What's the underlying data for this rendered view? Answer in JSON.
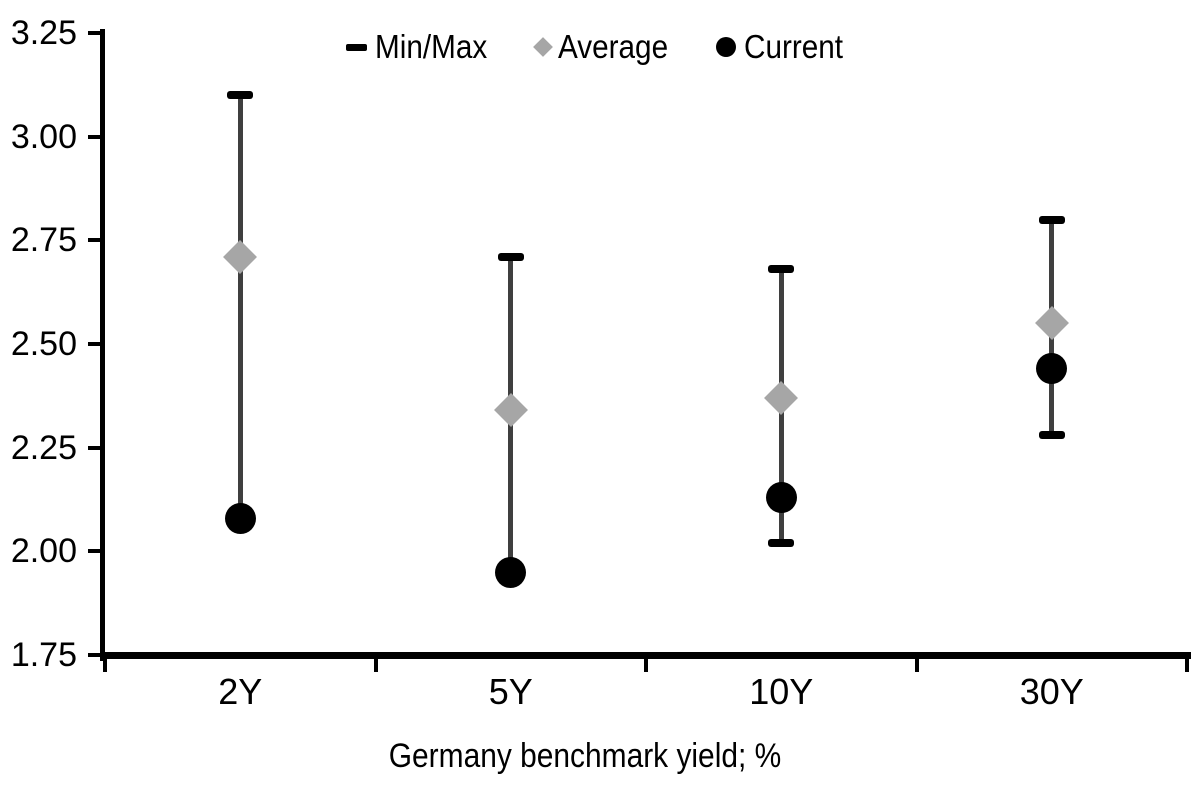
{
  "chart_data": {
    "type": "scatter",
    "title": "",
    "xlabel": "Germany benchmark yield; %",
    "ylabel": "",
    "categories": [
      "2Y",
      "5Y",
      "10Y",
      "30Y"
    ],
    "ylim": [
      1.75,
      3.25
    ],
    "grid": false,
    "legend_position": "top-center",
    "yticks": [
      {
        "label": "1.75",
        "value": 1.75
      },
      {
        "label": "2.00",
        "value": 2.0
      },
      {
        "label": "2.25",
        "value": 2.25
      },
      {
        "label": "2.50",
        "value": 2.5
      },
      {
        "label": "2.75",
        "value": 2.75
      },
      {
        "label": "3.00",
        "value": 3.0
      },
      {
        "label": "3.25",
        "value": 3.25
      }
    ],
    "legend": [
      {
        "label": "Min/Max",
        "marker": "dash"
      },
      {
        "label": "Average",
        "marker": "diamond"
      },
      {
        "label": "Current",
        "marker": "circle"
      }
    ],
    "series": [
      {
        "name": "Min/Max",
        "type": "range",
        "max": [
          3.1,
          2.71,
          2.68,
          2.8
        ],
        "min": [
          2.08,
          1.95,
          2.02,
          2.28
        ]
      },
      {
        "name": "Average",
        "type": "point",
        "marker": "diamond",
        "values": [
          2.71,
          2.34,
          2.37,
          2.55
        ]
      },
      {
        "name": "Current",
        "type": "point",
        "marker": "circle",
        "values": [
          2.08,
          1.95,
          2.13,
          2.44
        ]
      }
    ],
    "colors": {
      "range_line": "#3f3f3f",
      "range_cap": "#000000",
      "average": "#a6a6a6",
      "current": "#000000",
      "axis": "#000000",
      "text": "#000000",
      "background": "#ffffff"
    }
  }
}
